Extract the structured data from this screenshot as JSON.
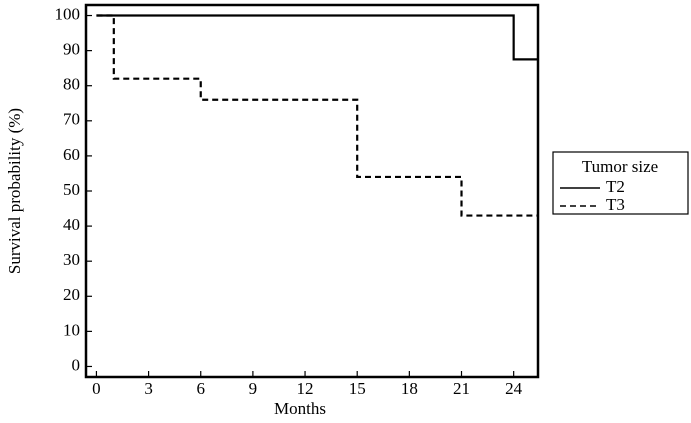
{
  "chart_data": {
    "type": "step",
    "x_label": "Months",
    "y_label": "Survival probability (%)",
    "legend_title": "Tumor size",
    "xlim": [
      -0.6,
      25.4
    ],
    "xticks": [
      0,
      3,
      6,
      9,
      12,
      15,
      18,
      21,
      24
    ],
    "ylim": [
      -3,
      103
    ],
    "yticks": [
      0,
      10,
      20,
      30,
      40,
      50,
      60,
      70,
      80,
      90,
      100
    ],
    "series": [
      {
        "name": "T2",
        "color": "#000000",
        "dash": "solid",
        "x": [
          0,
          24,
          25.4
        ],
        "values": [
          100,
          87.5,
          87.5
        ]
      },
      {
        "name": "T3",
        "color": "#000000",
        "dash": "dashed",
        "x": [
          0,
          1,
          6,
          15,
          21,
          25.4
        ],
        "values": [
          100,
          82,
          76,
          54,
          43,
          43
        ]
      }
    ]
  }
}
